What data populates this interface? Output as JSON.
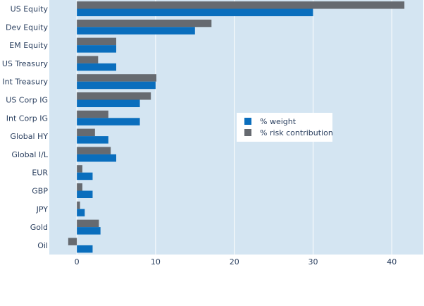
{
  "chart_data": {
    "type": "bar",
    "orientation": "horizontal",
    "title": "",
    "xlabel": "",
    "ylabel": "",
    "categories": [
      "US Equity",
      "Dev Equity",
      "EM Equity",
      "US Treasury",
      "Int Treasury",
      "US Corp IG",
      "Int Corp IG",
      "Global HY",
      "Global I/L",
      "EUR",
      "GBP",
      "JPY",
      "Gold",
      "Oil"
    ],
    "series": [
      {
        "name": "% weight",
        "color": "#0a6ebd",
        "values": [
          30,
          15,
          5,
          5,
          10,
          8,
          8,
          4,
          5,
          2,
          2,
          1,
          3,
          2
        ]
      },
      {
        "name": "% risk contribution",
        "color": "#666a70",
        "values": [
          41.6,
          17.1,
          5.0,
          2.7,
          10.1,
          9.4,
          4.0,
          2.3,
          4.3,
          0.7,
          0.7,
          0.4,
          2.8,
          -1.1
        ]
      }
    ],
    "xlim": [
      -3.5,
      44
    ],
    "xticks": [
      0,
      10,
      20,
      30,
      40
    ],
    "grid": true,
    "legend_position": "right",
    "plot_background": "#d4e5f2"
  }
}
